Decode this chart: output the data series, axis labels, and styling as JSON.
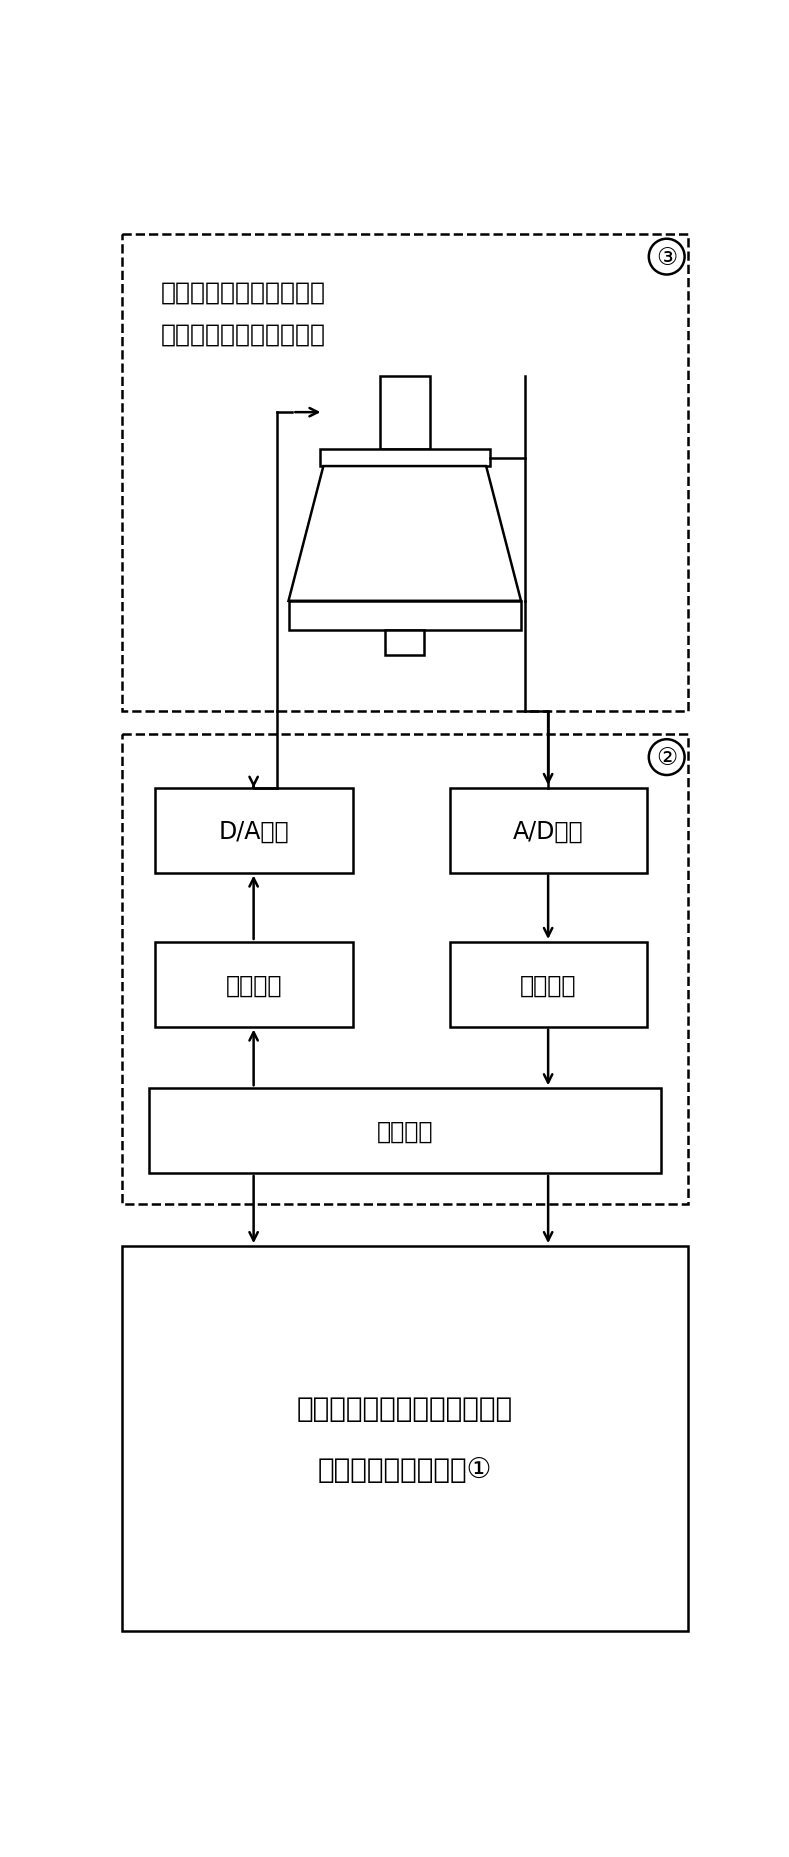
{
  "fig_width": 7.89,
  "fig_height": 18.58,
  "bg_color": "#ffffff",
  "line_color": "#000000",
  "label_top_line1": "激振装置，功率放大器，",
  "label_top_line2": "传感器，夹具，试验件等",
  "label_da": "D/A转换",
  "label_ad": "A/D转换",
  "label_out": "输出模块",
  "label_in": "输入模块",
  "label_ctrl": "控制模块",
  "label_bottom_line1": "多输入多输出连续正弦扫频振",
  "label_bottom_line2": "动试验数字控制系统①",
  "circle3": "③",
  "circle2": "②"
}
